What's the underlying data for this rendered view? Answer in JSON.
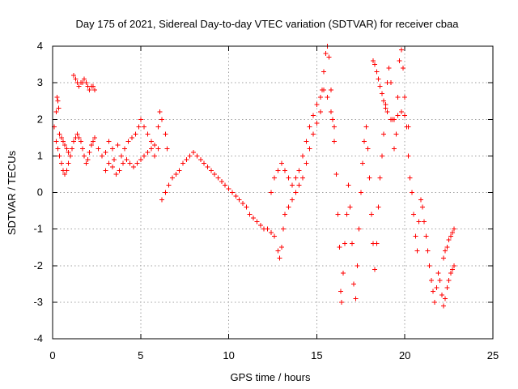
{
  "chart_data": {
    "type": "scatter",
    "title": "Day 175 of 2021, Sidereal Day-to-day VTEC variation (SDTVAR) for receiver cbaa",
    "xlabel": "GPS time / hours",
    "ylabel": "SDTVAR / TECUs",
    "xlim": [
      0,
      25
    ],
    "ylim": [
      -4,
      4
    ],
    "x_ticks": [
      0,
      5,
      10,
      15,
      20,
      25
    ],
    "y_ticks": [
      -4,
      -3,
      -2,
      -1,
      0,
      1,
      2,
      3,
      4
    ],
    "x_tick_labels": [
      "0",
      "5",
      "10",
      "15",
      "20",
      "25"
    ],
    "y_tick_labels": [
      "-4",
      "-3",
      "-2",
      "-1",
      "0",
      "1",
      "2",
      "3",
      "4"
    ],
    "grid": true,
    "marker": "plus",
    "colors": {
      "series": "#ff0000",
      "grid": "#a0a0a0",
      "axis": "#000000",
      "background": "#ffffff"
    },
    "series": [
      {
        "values": [
          [
            0.1,
            1.8
          ],
          [
            0.2,
            2.2
          ],
          [
            0.25,
            2.6
          ],
          [
            0.3,
            2.5
          ],
          [
            0.35,
            2.3
          ],
          [
            0.2,
            1.4
          ],
          [
            0.3,
            1.2
          ],
          [
            0.4,
            1.0
          ],
          [
            0.5,
            0.8
          ],
          [
            0.6,
            0.6
          ],
          [
            0.7,
            0.5
          ],
          [
            0.8,
            0.6
          ],
          [
            0.9,
            0.8
          ],
          [
            1.0,
            1.0
          ],
          [
            1.1,
            1.2
          ],
          [
            0.4,
            1.6
          ],
          [
            0.5,
            1.5
          ],
          [
            0.6,
            1.4
          ],
          [
            0.7,
            1.3
          ],
          [
            0.8,
            1.2
          ],
          [
            0.9,
            1.1
          ],
          [
            1.0,
            1.0
          ],
          [
            1.2,
            1.4
          ],
          [
            1.3,
            1.5
          ],
          [
            1.4,
            1.6
          ],
          [
            1.5,
            1.5
          ],
          [
            1.6,
            1.4
          ],
          [
            1.7,
            1.2
          ],
          [
            1.8,
            1.0
          ],
          [
            1.9,
            0.8
          ],
          [
            2.0,
            0.9
          ],
          [
            2.1,
            1.1
          ],
          [
            2.2,
            1.3
          ],
          [
            2.3,
            1.4
          ],
          [
            2.4,
            1.5
          ],
          [
            1.2,
            3.2
          ],
          [
            1.3,
            3.1
          ],
          [
            1.4,
            3.0
          ],
          [
            1.5,
            2.9
          ],
          [
            1.6,
            3.0
          ],
          [
            1.7,
            3.0
          ],
          [
            1.8,
            3.1
          ],
          [
            1.9,
            3.0
          ],
          [
            2.0,
            2.9
          ],
          [
            2.1,
            2.8
          ],
          [
            2.2,
            2.9
          ],
          [
            2.3,
            2.9
          ],
          [
            2.4,
            2.8
          ],
          [
            2.6,
            1.2
          ],
          [
            2.8,
            1.0
          ],
          [
            3.0,
            1.1
          ],
          [
            3.2,
            1.4
          ],
          [
            3.4,
            1.2
          ],
          [
            3.5,
            0.9
          ],
          [
            3.7,
            1.3
          ],
          [
            3.9,
            1.0
          ],
          [
            4.1,
            1.2
          ],
          [
            4.3,
            1.4
          ],
          [
            4.5,
            1.5
          ],
          [
            4.7,
            1.6
          ],
          [
            4.9,
            1.8
          ],
          [
            5.0,
            2.0
          ],
          [
            5.2,
            1.8
          ],
          [
            5.4,
            1.6
          ],
          [
            5.6,
            1.4
          ],
          [
            5.8,
            1.3
          ],
          [
            6.0,
            1.2
          ],
          [
            3.0,
            0.6
          ],
          [
            3.2,
            0.8
          ],
          [
            3.4,
            0.7
          ],
          [
            3.6,
            0.5
          ],
          [
            3.8,
            0.6
          ],
          [
            4.0,
            0.8
          ],
          [
            4.2,
            0.9
          ],
          [
            4.4,
            0.8
          ],
          [
            4.6,
            0.7
          ],
          [
            4.8,
            0.8
          ],
          [
            5.0,
            0.9
          ],
          [
            5.2,
            1.0
          ],
          [
            5.4,
            1.1
          ],
          [
            5.6,
            1.2
          ],
          [
            5.8,
            1.0
          ],
          [
            6.0,
            1.8
          ],
          [
            6.1,
            2.2
          ],
          [
            6.2,
            2.0
          ],
          [
            6.4,
            1.6
          ],
          [
            6.5,
            1.2
          ],
          [
            6.2,
            -0.2
          ],
          [
            6.4,
            0.0
          ],
          [
            6.6,
            0.2
          ],
          [
            6.8,
            0.4
          ],
          [
            7.0,
            0.5
          ],
          [
            7.2,
            0.6
          ],
          [
            7.4,
            0.8
          ],
          [
            7.6,
            0.9
          ],
          [
            7.8,
            1.0
          ],
          [
            8.0,
            1.1
          ],
          [
            8.2,
            1.0
          ],
          [
            8.4,
            0.9
          ],
          [
            8.6,
            0.8
          ],
          [
            8.8,
            0.7
          ],
          [
            9.0,
            0.6
          ],
          [
            9.2,
            0.5
          ],
          [
            9.4,
            0.4
          ],
          [
            9.6,
            0.3
          ],
          [
            9.8,
            0.2
          ],
          [
            10.0,
            0.1
          ],
          [
            10.2,
            0.0
          ],
          [
            10.4,
            -0.1
          ],
          [
            10.6,
            -0.2
          ],
          [
            10.8,
            -0.3
          ],
          [
            11.0,
            -0.4
          ],
          [
            11.2,
            -0.6
          ],
          [
            11.4,
            -0.7
          ],
          [
            11.6,
            -0.8
          ],
          [
            11.8,
            -0.9
          ],
          [
            12.0,
            -1.0
          ],
          [
            12.2,
            -1.0
          ],
          [
            12.4,
            -1.1
          ],
          [
            12.6,
            -1.2
          ],
          [
            12.8,
            -1.6
          ],
          [
            12.9,
            -1.8
          ],
          [
            13.0,
            -1.5
          ],
          [
            13.1,
            -1.0
          ],
          [
            13.2,
            -0.6
          ],
          [
            13.4,
            -0.4
          ],
          [
            13.6,
            -0.2
          ],
          [
            13.8,
            0.0
          ],
          [
            14.0,
            0.2
          ],
          [
            14.2,
            0.4
          ],
          [
            14.4,
            0.8
          ],
          [
            14.6,
            1.2
          ],
          [
            14.8,
            1.6
          ],
          [
            15.0,
            1.9
          ],
          [
            15.2,
            2.2
          ],
          [
            15.3,
            2.8
          ],
          [
            15.4,
            3.3
          ],
          [
            15.5,
            3.8
          ],
          [
            15.6,
            4.0
          ],
          [
            15.7,
            3.7
          ],
          [
            15.8,
            2.8
          ],
          [
            15.9,
            2.0
          ],
          [
            16.0,
            1.4
          ],
          [
            16.1,
            0.5
          ],
          [
            16.2,
            -0.6
          ],
          [
            16.3,
            -1.5
          ],
          [
            16.35,
            -2.7
          ],
          [
            16.4,
            -3.0
          ],
          [
            16.5,
            -2.2
          ],
          [
            16.6,
            -1.4
          ],
          [
            16.7,
            -0.6
          ],
          [
            16.8,
            0.2
          ],
          [
            16.9,
            -0.4
          ],
          [
            17.0,
            -1.4
          ],
          [
            17.1,
            -2.5
          ],
          [
            17.2,
            -2.9
          ],
          [
            17.3,
            -2.0
          ],
          [
            17.4,
            -1.0
          ],
          [
            17.5,
            0.0
          ],
          [
            17.6,
            0.8
          ],
          [
            17.7,
            1.4
          ],
          [
            17.8,
            1.8
          ],
          [
            17.9,
            1.2
          ],
          [
            18.0,
            0.4
          ],
          [
            18.1,
            -0.6
          ],
          [
            18.2,
            -1.4
          ],
          [
            18.3,
            -2.1
          ],
          [
            18.4,
            -1.4
          ],
          [
            18.5,
            -0.4
          ],
          [
            18.6,
            0.4
          ],
          [
            18.7,
            1.0
          ],
          [
            18.8,
            1.6
          ],
          [
            18.9,
            2.4
          ],
          [
            19.0,
            3.0
          ],
          [
            19.1,
            3.4
          ],
          [
            19.2,
            3.0
          ],
          [
            19.3,
            2.0
          ],
          [
            19.4,
            1.2
          ],
          [
            19.5,
            1.6
          ],
          [
            19.6,
            2.6
          ],
          [
            19.7,
            3.6
          ],
          [
            19.8,
            3.9
          ],
          [
            19.9,
            3.4
          ],
          [
            20.0,
            2.6
          ],
          [
            20.1,
            1.8
          ],
          [
            20.2,
            1.0
          ],
          [
            20.3,
            0.4
          ],
          [
            20.4,
            0.0
          ],
          [
            20.5,
            -0.6
          ],
          [
            20.6,
            -1.2
          ],
          [
            20.7,
            -1.6
          ],
          [
            20.8,
            -0.8
          ],
          [
            20.9,
            -0.2
          ],
          [
            21.0,
            -0.4
          ],
          [
            21.1,
            -0.8
          ],
          [
            21.2,
            -1.2
          ],
          [
            21.3,
            -1.6
          ],
          [
            21.4,
            -2.0
          ],
          [
            21.5,
            -2.4
          ],
          [
            21.6,
            -2.7
          ],
          [
            21.7,
            -3.0
          ],
          [
            21.8,
            -2.6
          ],
          [
            21.9,
            -2.2
          ],
          [
            22.0,
            -2.4
          ],
          [
            22.1,
            -2.8
          ],
          [
            22.2,
            -3.1
          ],
          [
            22.3,
            -2.9
          ],
          [
            22.4,
            -2.6
          ],
          [
            22.5,
            -2.4
          ],
          [
            22.6,
            -2.2
          ],
          [
            22.7,
            -2.1
          ],
          [
            22.8,
            -2.0
          ],
          [
            22.2,
            -1.8
          ],
          [
            22.3,
            -1.6
          ],
          [
            22.4,
            -1.5
          ],
          [
            22.5,
            -1.3
          ],
          [
            22.6,
            -1.2
          ],
          [
            22.7,
            -1.1
          ],
          [
            22.8,
            -1.0
          ],
          [
            18.2,
            3.6
          ],
          [
            18.3,
            3.5
          ],
          [
            18.4,
            3.3
          ],
          [
            18.5,
            3.1
          ],
          [
            18.6,
            2.9
          ],
          [
            18.7,
            2.7
          ],
          [
            18.8,
            2.5
          ],
          [
            18.9,
            2.3
          ],
          [
            19.0,
            2.2
          ],
          [
            19.2,
            2.0
          ],
          [
            19.4,
            2.0
          ],
          [
            19.6,
            2.1
          ],
          [
            19.8,
            2.2
          ],
          [
            20.0,
            2.1
          ],
          [
            20.2,
            1.8
          ],
          [
            14.2,
            1.0
          ],
          [
            14.4,
            1.4
          ],
          [
            14.6,
            1.8
          ],
          [
            14.8,
            2.1
          ],
          [
            15.0,
            2.4
          ],
          [
            15.2,
            2.6
          ],
          [
            15.4,
            2.8
          ],
          [
            15.6,
            2.6
          ],
          [
            15.8,
            2.2
          ],
          [
            16.0,
            1.8
          ],
          [
            12.4,
            0.0
          ],
          [
            12.6,
            0.4
          ],
          [
            12.8,
            0.6
          ],
          [
            13.0,
            0.8
          ],
          [
            13.2,
            0.6
          ],
          [
            13.4,
            0.4
          ],
          [
            13.6,
            0.2
          ],
          [
            13.8,
            0.4
          ],
          [
            14.0,
            0.6
          ]
        ]
      }
    ]
  }
}
